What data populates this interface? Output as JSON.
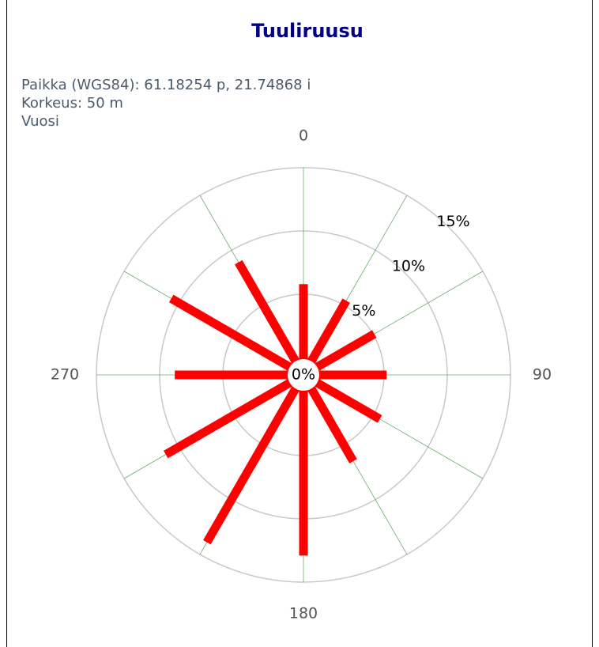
{
  "chart_data": {
    "type": "windrose",
    "title": "Tuuliruusu",
    "info": [
      "Paikka (WGS84): 61.18254 p, 21.74868 i",
      "Korkeus: 50 m",
      "Vuosi"
    ],
    "theta": [
      0,
      30,
      60,
      90,
      120,
      150,
      180,
      210,
      240,
      270,
      300,
      330
    ],
    "values": [
      5.8,
      5.4,
      5.1,
      5.2,
      5.6,
      6.5,
      12.9,
      13.9,
      11.2,
      8.8,
      10.7,
      8.9
    ],
    "color": "#ff0000",
    "rlim": [
      0,
      15
    ],
    "rticks": [
      {
        "value": 0,
        "label": "0%"
      },
      {
        "value": 5,
        "label": "5%"
      },
      {
        "value": 10,
        "label": "10%"
      },
      {
        "value": 15,
        "label": "15%"
      }
    ],
    "thetaticks": [
      0,
      90,
      180,
      270
    ]
  }
}
